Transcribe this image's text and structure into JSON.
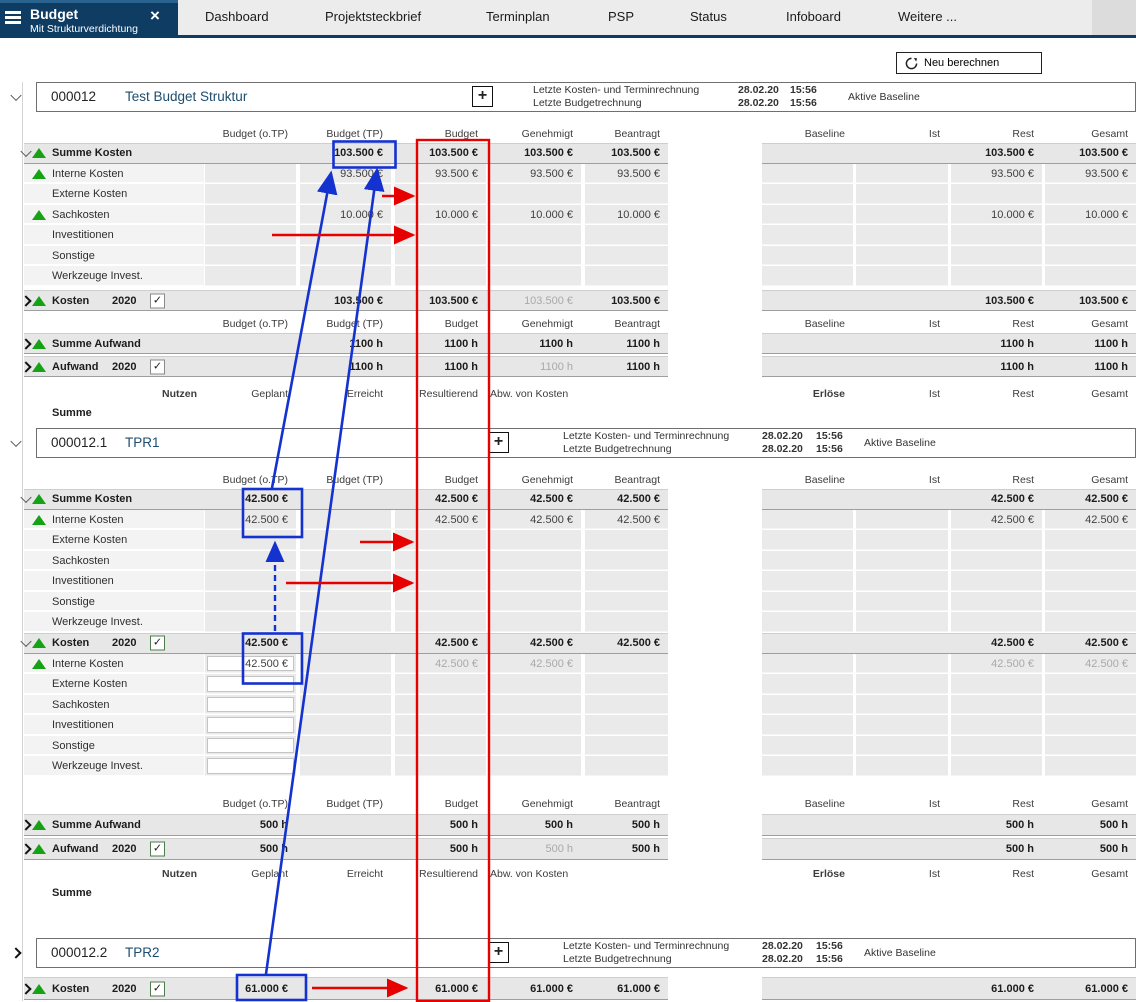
{
  "tab_bar": {
    "active_tab": {
      "title": "Budget",
      "subtitle": "Mit Strukturverdichtung"
    },
    "tabs": [
      "Dashboard",
      "Projektsteckbrief",
      "Terminplan",
      "PSP",
      "Status",
      "Infoboard",
      "Weitere ..."
    ]
  },
  "toolbar": {
    "recalc_label": "Neu berechnen"
  },
  "column_sets": {
    "cost": [
      "Budget (o.TP)",
      "Budget (TP)",
      "Budget",
      "Genehmigt",
      "Beantragt",
      "Baseline",
      "Ist",
      "Rest",
      "Gesamt"
    ],
    "nutzen": [
      "Nutzen",
      "Geplant",
      "Erreicht",
      "Resultierend",
      "Abw. von Kosten",
      "Erlöse",
      "Ist",
      "Rest",
      "Gesamt"
    ]
  },
  "annotation_colors": {
    "highlight_blue": "#1432cf",
    "emphasis_red": "#e60000"
  },
  "blocks": [
    {
      "id": "000012",
      "name": "Test Budget Struktur",
      "collapsed": false,
      "info": {
        "line1": "Letzte Kosten- und Terminrechnung",
        "line2": "Letzte Budgetrechnung",
        "date1": "28.02.20",
        "time1": "15:56",
        "date2": "28.02.20",
        "time2": "15:56",
        "baseline": "Aktive Baseline"
      },
      "cost_rows": [
        {
          "label": "Summe Kosten",
          "chev": "open",
          "tri": true,
          "sum": true,
          "cells": {
            "tp": "103.500 €",
            "budget": "103.500 €",
            "gen": "103.500 €",
            "bean": "103.500 €",
            "rest": "103.500 €",
            "ges": "103.500 €"
          }
        },
        {
          "label": "Interne Kosten",
          "tri": true,
          "cells": {
            "tp": "93.500 €",
            "budget": "93.500 €",
            "gen": "93.500 €",
            "bean": "93.500 €",
            "rest": "93.500 €",
            "ges": "93.500 €"
          }
        },
        {
          "label": "Externe Kosten",
          "cells": {}
        },
        {
          "label": "Sachkosten",
          "tri": true,
          "cells": {
            "tp": "10.000 €",
            "budget": "10.000 €",
            "gen": "10.000 €",
            "bean": "10.000 €",
            "rest": "10.000 €",
            "ges": "10.000 €"
          }
        },
        {
          "label": "Investitionen",
          "cells": {}
        },
        {
          "label": "Sonstige",
          "cells": {}
        },
        {
          "label": "Werkzeuge Invest.",
          "cells": {}
        }
      ],
      "kosten_year_row": [
        {
          "label": "Kosten",
          "year": "2020",
          "check": true,
          "chev": "closed",
          "tri": true,
          "sum": true,
          "muted": [
            "gen"
          ],
          "cells": {
            "tp": "103.500 €",
            "budget": "103.500 €",
            "gen": "103.500 €",
            "bean": "103.500 €",
            "rest": "103.500 €",
            "ges": "103.500 €"
          }
        }
      ],
      "aufwand_rows": [
        {
          "label": "Summe Aufwand",
          "chev": "closed",
          "tri": true,
          "sum": true,
          "cells": {
            "tp": "1100 h",
            "budget": "1100 h",
            "gen": "1100 h",
            "bean": "1100 h",
            "rest": "1100 h",
            "ges": "1100 h"
          }
        },
        {
          "label": "Aufwand",
          "year": "2020",
          "check": true,
          "chev": "closed",
          "tri": true,
          "sum": true,
          "muted": [
            "gen"
          ],
          "cells": {
            "tp": "1100 h",
            "budget": "1100 h",
            "gen": "1100 h",
            "bean": "1100 h",
            "rest": "1100 h",
            "ges": "1100 h"
          }
        }
      ],
      "summe_label": "Summe"
    },
    {
      "id": "000012.1",
      "name": "TPR1",
      "collapsed": false,
      "info": {
        "line1": "Letzte Kosten- und Terminrechnung",
        "line2": "Letzte Budgetrechnung",
        "date1": "28.02.20",
        "time1": "15:56",
        "date2": "28.02.20",
        "time2": "15:56",
        "baseline": "Aktive Baseline"
      },
      "cost_rows": [
        {
          "label": "Summe Kosten",
          "chev": "open",
          "tri": true,
          "sum": true,
          "cells": {
            "otp": "42.500 €",
            "budget": "42.500 €",
            "gen": "42.500 €",
            "bean": "42.500 €",
            "rest": "42.500 €",
            "ges": "42.500 €"
          }
        },
        {
          "label": "Interne Kosten",
          "tri": true,
          "cells": {
            "otp": "42.500 €",
            "budget": "42.500 €",
            "gen": "42.500 €",
            "bean": "42.500 €",
            "rest": "42.500 €",
            "ges": "42.500 €"
          }
        },
        {
          "label": "Externe Kosten",
          "cells": {}
        },
        {
          "label": "Sachkosten",
          "cells": {}
        },
        {
          "label": "Investitionen",
          "cells": {}
        },
        {
          "label": "Sonstige",
          "cells": {}
        },
        {
          "label": "Werkzeuge Invest.",
          "cells": {}
        }
      ],
      "kosten_year_rows": [
        {
          "label": "Kosten",
          "year": "2020",
          "check": true,
          "check_green": true,
          "chev": "open",
          "tri": true,
          "sum": true,
          "cells": {
            "otp": "42.500 €",
            "budget": "42.500 €",
            "gen": "42.500 €",
            "bean": "42.500 €",
            "rest": "42.500 €",
            "ges": "42.500 €"
          }
        },
        {
          "label": "Interne Kosten",
          "tri": true,
          "edit": [
            "otp"
          ],
          "muted": [
            "budget",
            "gen",
            "rest",
            "ges"
          ],
          "cells": {
            "otp": "42.500 €",
            "budget": "42.500 €",
            "gen": "42.500 €",
            "rest": "42.500 €",
            "ges": "42.500 €"
          }
        },
        {
          "label": "Externe Kosten",
          "edit": [
            "otp"
          ],
          "cells": {}
        },
        {
          "label": "Sachkosten",
          "edit": [
            "otp"
          ],
          "cells": {}
        },
        {
          "label": "Investitionen",
          "edit": [
            "otp"
          ],
          "cells": {}
        },
        {
          "label": "Sonstige",
          "edit": [
            "otp"
          ],
          "cells": {}
        },
        {
          "label": "Werkzeuge Invest.",
          "edit": [
            "otp"
          ],
          "cells": {}
        }
      ],
      "aufwand_rows": [
        {
          "label": "Summe Aufwand",
          "chev": "closed",
          "tri": true,
          "sum": true,
          "cells": {
            "otp": "500 h",
            "budget": "500 h",
            "gen": "500 h",
            "bean": "500 h",
            "rest": "500 h",
            "ges": "500 h"
          }
        },
        {
          "label": "Aufwand",
          "year": "2020",
          "check": true,
          "check_green": true,
          "chev": "closed",
          "tri": true,
          "sum": true,
          "muted": [
            "gen"
          ],
          "cells": {
            "otp": "500 h",
            "budget": "500 h",
            "gen": "500 h",
            "bean": "500 h",
            "rest": "500 h",
            "ges": "500 h"
          }
        }
      ],
      "summe_label": "Summe"
    },
    {
      "id": "000012.2",
      "name": "TPR2",
      "collapsed": true,
      "info": {
        "line1": "Letzte Kosten- und Terminrechnung",
        "line2": "Letzte Budgetrechnung",
        "date1": "28.02.20",
        "time1": "15:56",
        "date2": "28.02.20",
        "time2": "15:56",
        "baseline": "Aktive Baseline"
      },
      "kosten_year_rows": [
        {
          "label": "Kosten",
          "year": "2020",
          "check": true,
          "check_green": true,
          "chev": "closed",
          "tri": true,
          "sum": true,
          "cells": {
            "otp": "61.000 €",
            "budget": "61.000 €",
            "gen": "61.000 €",
            "bean": "61.000 €",
            "rest": "61.000 €",
            "ges": "61.000 €"
          }
        }
      ]
    }
  ]
}
